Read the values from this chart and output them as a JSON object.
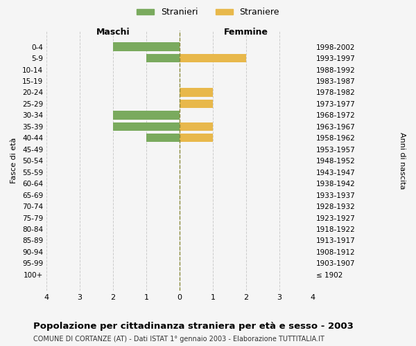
{
  "age_groups": [
    "100+",
    "95-99",
    "90-94",
    "85-89",
    "80-84",
    "75-79",
    "70-74",
    "65-69",
    "60-64",
    "55-59",
    "50-54",
    "45-49",
    "40-44",
    "35-39",
    "30-34",
    "25-29",
    "20-24",
    "15-19",
    "10-14",
    "5-9",
    "0-4"
  ],
  "birth_years": [
    "≤ 1902",
    "1903-1907",
    "1908-1912",
    "1913-1917",
    "1918-1922",
    "1923-1927",
    "1928-1932",
    "1933-1937",
    "1938-1942",
    "1943-1947",
    "1948-1952",
    "1953-1957",
    "1958-1962",
    "1963-1967",
    "1968-1972",
    "1973-1977",
    "1978-1982",
    "1983-1987",
    "1988-1992",
    "1993-1997",
    "1998-2002"
  ],
  "maschi": [
    0,
    0,
    0,
    0,
    0,
    0,
    0,
    0,
    0,
    0,
    0,
    0,
    1,
    2,
    2,
    0,
    0,
    0,
    0,
    1,
    2
  ],
  "femmine": [
    0,
    0,
    0,
    0,
    0,
    0,
    0,
    0,
    0,
    0,
    0,
    0,
    1,
    1,
    0,
    1,
    1,
    0,
    0,
    2,
    0
  ],
  "maschi_color": "#7aaa5e",
  "femmine_color": "#e8b84b",
  "bg_color": "#f5f5f5",
  "grid_color": "#cccccc",
  "center_line_color": "#8a8a3a",
  "title": "Popolazione per cittadinanza straniera per età e sesso - 2003",
  "subtitle": "COMUNE DI CORTANZE (AT) - Dati ISTAT 1° gennaio 2003 - Elaborazione TUTTITALIA.IT",
  "ylabel_left": "Fasce di età",
  "ylabel_right": "Anni di nascita",
  "xlabel_left": "Maschi",
  "xlabel_right": "Femmine",
  "legend_maschi": "Stranieri",
  "legend_femmine": "Straniere",
  "xlim": 4
}
